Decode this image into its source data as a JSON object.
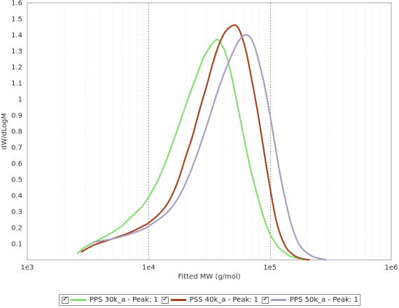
{
  "chart_data": {
    "type": "line",
    "title": "",
    "xlabel": "Fitted MW (g/mol)",
    "ylabel": "dW/dLogM",
    "x_scale": "log",
    "xlim": [
      1000,
      1000000
    ],
    "ylim": [
      0,
      1.6
    ],
    "x_tick_labels": [
      "1e3",
      "1e4",
      "1e5",
      "1e6"
    ],
    "x_tick_values": [
      1000,
      10000,
      100000,
      1000000
    ],
    "y_tick_values": [
      0.1,
      0.2,
      0.3,
      0.4,
      0.5,
      0.6,
      0.7,
      0.8,
      0.9,
      1,
      1.1,
      1.2,
      1.3,
      1.4,
      1.5,
      1.6
    ],
    "y_tick_labels": [
      "0.1",
      "0.2",
      "0.3",
      "0.4",
      "0.5",
      "0.6",
      "0.7",
      "0.8",
      "0.9",
      "1",
      "1.1",
      "1.2",
      "1.3",
      "1.4",
      "1.5",
      "1.6"
    ],
    "grid": "vertical dashed at decades",
    "legend_position": "bottom",
    "series": [
      {
        "name": "PPS 30k_a - Peak: 1",
        "color": "#88dd77",
        "x": [
          2600,
          3000,
          4000,
          5000,
          6000,
          7000,
          8000,
          9000,
          10000,
          12000,
          14000,
          16000,
          18000,
          20000,
          22000,
          25000,
          28000,
          30000,
          33000,
          36000,
          38000,
          40000,
          43000,
          46000,
          50000,
          55000,
          60000,
          65000,
          70000,
          80000,
          90000,
          100000,
          110000,
          120000,
          135000,
          150000,
          170000,
          190000
        ],
        "y": [
          0.04,
          0.08,
          0.13,
          0.17,
          0.21,
          0.26,
          0.3,
          0.34,
          0.39,
          0.5,
          0.62,
          0.74,
          0.85,
          0.95,
          1.04,
          1.15,
          1.25,
          1.29,
          1.34,
          1.37,
          1.365,
          1.34,
          1.29,
          1.21,
          1.09,
          0.93,
          0.79,
          0.66,
          0.55,
          0.38,
          0.25,
          0.16,
          0.11,
          0.07,
          0.04,
          0.02,
          0.01,
          0.0
        ]
      },
      {
        "name": "PSS 40k_a - Peak: 1",
        "color": "#a94420",
        "x": [
          2800,
          3500,
          5000,
          7000,
          9000,
          10000,
          12000,
          14000,
          16000,
          18000,
          20000,
          23000,
          26000,
          30000,
          34000,
          38000,
          42000,
          46000,
          50000,
          52000,
          54000,
          56000,
          58000,
          62000,
          66000,
          70000,
          75000,
          80000,
          90000,
          100000,
          110000,
          120000,
          135000,
          150000,
          170000,
          190000,
          210000
        ],
        "y": [
          0.05,
          0.09,
          0.13,
          0.17,
          0.21,
          0.23,
          0.28,
          0.34,
          0.42,
          0.52,
          0.63,
          0.77,
          0.92,
          1.08,
          1.23,
          1.34,
          1.41,
          1.445,
          1.46,
          1.46,
          1.45,
          1.43,
          1.4,
          1.33,
          1.24,
          1.14,
          1.02,
          0.9,
          0.66,
          0.45,
          0.28,
          0.17,
          0.08,
          0.04,
          0.015,
          0.005,
          0.0
        ]
      },
      {
        "name": "PPS 50k_a - Peak: 1",
        "color": "#aa9dc1",
        "x": [
          3500,
          5000,
          7000,
          9000,
          10000,
          12000,
          14000,
          16000,
          18000,
          20000,
          23000,
          26000,
          30000,
          35000,
          40000,
          45000,
          50000,
          55000,
          60000,
          64000,
          68000,
          72000,
          76000,
          80000,
          90000,
          100000,
          110000,
          120000,
          135000,
          150000,
          170000,
          190000,
          220000,
          250000,
          290000
        ],
        "y": [
          0.11,
          0.13,
          0.16,
          0.19,
          0.21,
          0.25,
          0.29,
          0.34,
          0.4,
          0.47,
          0.58,
          0.69,
          0.83,
          0.99,
          1.12,
          1.22,
          1.3,
          1.36,
          1.395,
          1.4,
          1.39,
          1.36,
          1.31,
          1.25,
          1.09,
          0.9,
          0.72,
          0.55,
          0.36,
          0.22,
          0.11,
          0.06,
          0.025,
          0.01,
          0.0
        ]
      }
    ]
  }
}
